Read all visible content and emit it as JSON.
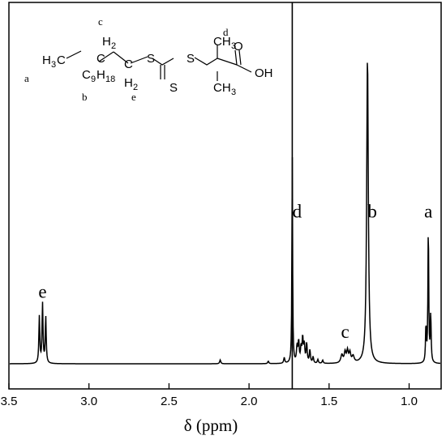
{
  "chart_data": {
    "type": "line",
    "title": "",
    "xlabel": "δ (ppm)",
    "ylabel": "",
    "xlim": [
      3.5,
      0.8
    ],
    "x_reversed": true,
    "ylim": [
      0,
      1
    ],
    "xticks": [
      {
        "value": 3.5,
        "label": "3.5"
      },
      {
        "value": 3.0,
        "label": "3.0"
      },
      {
        "value": 2.5,
        "label": "2.5"
      },
      {
        "value": 2.0,
        "label": "2.0"
      },
      {
        "value": 1.5,
        "label": "1.5"
      },
      {
        "value": 1.0,
        "label": "1.0"
      }
    ],
    "grid": false,
    "series": [
      {
        "peaks": [
          {
            "x": 3.31,
            "y": 0.145,
            "w": 0.0035
          },
          {
            "x": 3.29,
            "y": 0.185,
            "w": 0.0035
          },
          {
            "x": 3.27,
            "y": 0.145,
            "w": 0.0035
          },
          {
            "x": 2.18,
            "y": 0.012,
            "w": 0.004
          },
          {
            "x": 1.88,
            "y": 0.008,
            "w": 0.004
          },
          {
            "x": 1.78,
            "y": 0.018,
            "w": 0.004
          },
          {
            "x": 1.73,
            "y": 0.66,
            "w": 0.0025
          },
          {
            "x": 1.7,
            "y": 0.05,
            "w": 0.004
          },
          {
            "x": 1.69,
            "y": 0.065,
            "w": 0.004
          },
          {
            "x": 1.675,
            "y": 0.045,
            "w": 0.004
          },
          {
            "x": 1.665,
            "y": 0.075,
            "w": 0.004
          },
          {
            "x": 1.655,
            "y": 0.055,
            "w": 0.004
          },
          {
            "x": 1.64,
            "y": 0.06,
            "w": 0.004
          },
          {
            "x": 1.62,
            "y": 0.04,
            "w": 0.004
          },
          {
            "x": 1.6,
            "y": 0.02,
            "w": 0.004
          },
          {
            "x": 1.57,
            "y": 0.012,
            "w": 0.004
          },
          {
            "x": 1.54,
            "y": 0.01,
            "w": 0.004
          },
          {
            "x": 1.42,
            "y": 0.025,
            "w": 0.008
          },
          {
            "x": 1.4,
            "y": 0.032,
            "w": 0.006
          },
          {
            "x": 1.385,
            "y": 0.036,
            "w": 0.006
          },
          {
            "x": 1.37,
            "y": 0.03,
            "w": 0.006
          },
          {
            "x": 1.35,
            "y": 0.02,
            "w": 0.008
          },
          {
            "x": 1.26,
            "y": 0.96,
            "w": 0.006
          },
          {
            "x": 0.895,
            "y": 0.115,
            "w": 0.003
          },
          {
            "x": 0.88,
            "y": 0.43,
            "w": 0.003
          },
          {
            "x": 0.865,
            "y": 0.15,
            "w": 0.003
          }
        ]
      }
    ],
    "peak_labels": [
      {
        "x": 3.29,
        "y": 0.205,
        "text": "e"
      },
      {
        "x": 1.7,
        "y": 0.455,
        "text": "d"
      },
      {
        "x": 1.4,
        "y": 0.08,
        "text": "c"
      },
      {
        "x": 1.23,
        "y": 0.455,
        "text": "b"
      },
      {
        "x": 0.88,
        "y": 0.455,
        "text": "a"
      }
    ],
    "vertical_rule_x": 1.73
  },
  "structure": {
    "sub_c": "c",
    "sub_d": "d",
    "sub_a": "a",
    "sub_b": "b",
    "sub_e": "e",
    "h3c": "H",
    "h3c_sub": "3",
    "h3c_c": "C",
    "c9": "C",
    "c9_sub": "9",
    "h18": "H",
    "h18_sub": "18",
    "h2_top": "H",
    "h2_top_sub": "2",
    "c_top": "C",
    "h2_bot": "H",
    "h2_bot_sub": "2",
    "c_bot": "C",
    "s1": "S",
    "s2": "S",
    "s3": "S",
    "ch3_top": "CH",
    "ch3_top_sub": "3",
    "ch3_bot": "CH",
    "ch3_bot_sub": "3",
    "o": "O",
    "oh": "OH"
  }
}
